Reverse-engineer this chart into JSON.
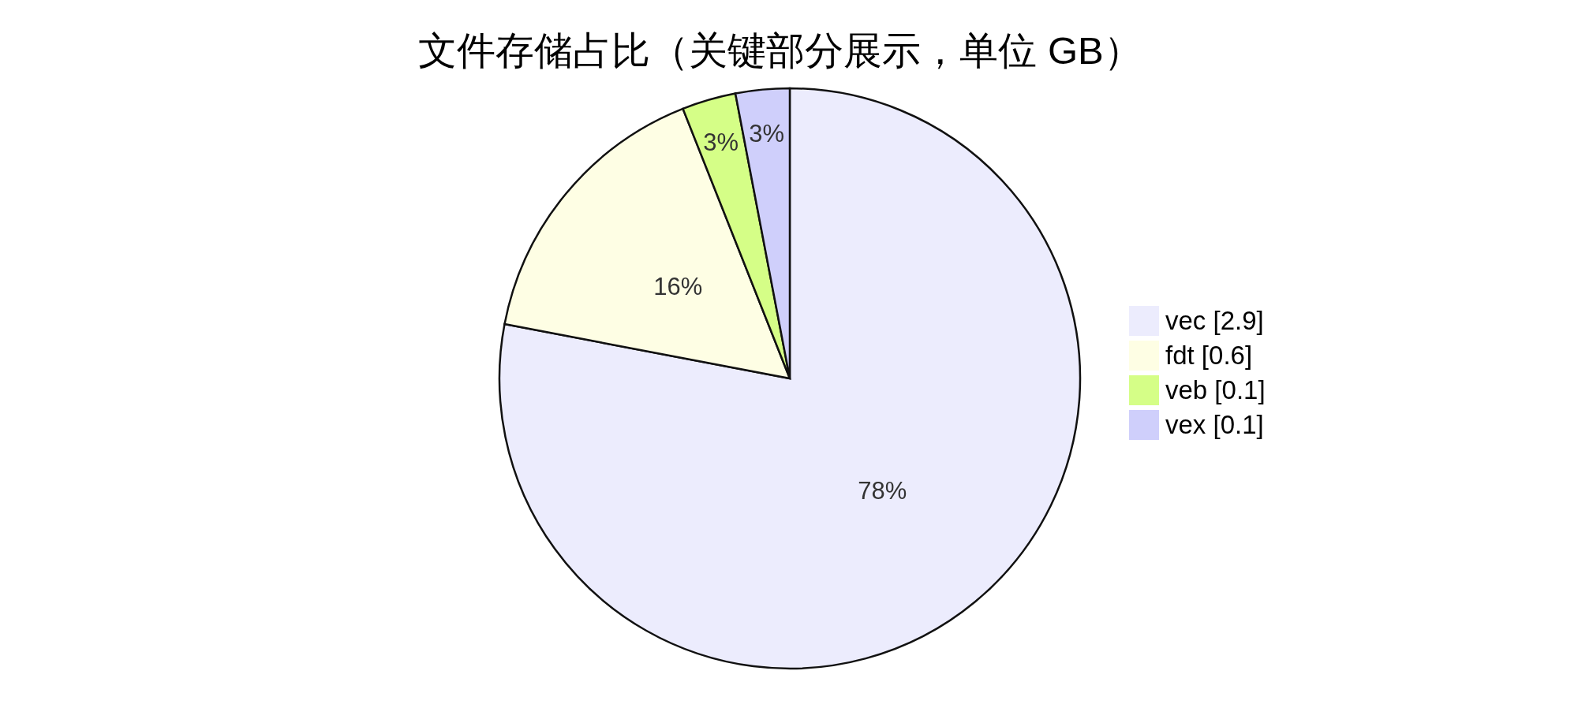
{
  "chart_data": {
    "type": "pie",
    "title": "文件存储占比（关键部分展示，单位 GB）",
    "categories": [
      "vec [2.9]",
      "fdt [0.6]",
      "veb [0.1]",
      "vex [0.1]"
    ],
    "values": [
      78,
      16,
      3,
      3
    ],
    "colors": [
      "#ececfd",
      "#fefee4",
      "#d5fe87",
      "#cfcffb"
    ],
    "value_labels": [
      "78%",
      "16%",
      "3%",
      "3%"
    ],
    "legend": "right"
  }
}
